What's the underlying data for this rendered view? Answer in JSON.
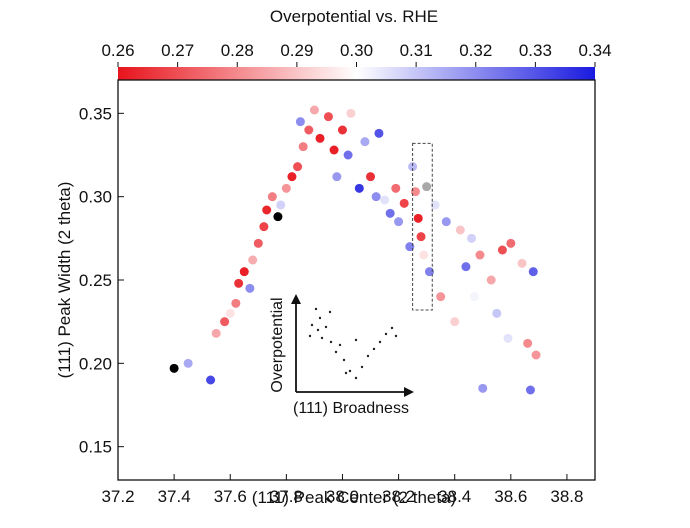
{
  "chart_data": {
    "type": "scatter",
    "colorbar": {
      "title": "Overpotential vs. RHE",
      "min": 0.26,
      "max": 0.34,
      "ticks": [
        "0.26",
        "0.27",
        "0.28",
        "0.29",
        "0.30",
        "0.31",
        "0.32",
        "0.33",
        "0.34"
      ],
      "low_color": "#e8141c",
      "mid_color": "#ffffff",
      "high_color": "#1a1ae0"
    },
    "xlabel": "(111) Peak Center (2 theta)",
    "ylabel": "(111) Peak Width (2 theta)",
    "xlim": [
      37.2,
      38.9
    ],
    "ylim": [
      0.13,
      0.37
    ],
    "xticks": [
      "37.2",
      "37.4",
      "37.6",
      "37.8",
      "38.0",
      "38.2",
      "38.4",
      "38.6",
      "38.8"
    ],
    "yticks": [
      "0.15",
      "0.20",
      "0.25",
      "0.30",
      "0.35"
    ],
    "grid": false,
    "points": [
      {
        "x": 37.4,
        "y": 0.197,
        "c": "black"
      },
      {
        "x": 37.45,
        "y": 0.2,
        "c": 0.315
      },
      {
        "x": 37.5,
        "y": 0.205,
        "c": 0.3
      },
      {
        "x": 37.53,
        "y": 0.19,
        "c": 0.332
      },
      {
        "x": 37.52,
        "y": 0.212,
        "c": 0.3
      },
      {
        "x": 37.55,
        "y": 0.218,
        "c": 0.285
      },
      {
        "x": 37.58,
        "y": 0.225,
        "c": 0.272
      },
      {
        "x": 37.6,
        "y": 0.23,
        "c": 0.295
      },
      {
        "x": 37.62,
        "y": 0.236,
        "c": 0.278
      },
      {
        "x": 37.63,
        "y": 0.248,
        "c": 0.265
      },
      {
        "x": 37.65,
        "y": 0.255,
        "c": 0.262
      },
      {
        "x": 37.67,
        "y": 0.245,
        "c": 0.32
      },
      {
        "x": 37.68,
        "y": 0.262,
        "c": 0.286
      },
      {
        "x": 37.7,
        "y": 0.272,
        "c": 0.272
      },
      {
        "x": 37.72,
        "y": 0.282,
        "c": 0.268
      },
      {
        "x": 37.73,
        "y": 0.292,
        "c": 0.263
      },
      {
        "x": 37.75,
        "y": 0.3,
        "c": 0.278
      },
      {
        "x": 37.77,
        "y": 0.288,
        "c": "black"
      },
      {
        "x": 37.78,
        "y": 0.295,
        "c": 0.308
      },
      {
        "x": 37.8,
        "y": 0.305,
        "c": 0.282
      },
      {
        "x": 37.82,
        "y": 0.312,
        "c": 0.262
      },
      {
        "x": 37.84,
        "y": 0.318,
        "c": 0.27
      },
      {
        "x": 37.85,
        "y": 0.345,
        "c": 0.32
      },
      {
        "x": 37.86,
        "y": 0.33,
        "c": 0.278
      },
      {
        "x": 37.88,
        "y": 0.34,
        "c": 0.272
      },
      {
        "x": 37.9,
        "y": 0.352,
        "c": 0.285
      },
      {
        "x": 37.92,
        "y": 0.335,
        "c": 0.262
      },
      {
        "x": 37.93,
        "y": 0.32,
        "c": 0.3
      },
      {
        "x": 37.95,
        "y": 0.348,
        "c": 0.27
      },
      {
        "x": 37.97,
        "y": 0.328,
        "c": 0.262
      },
      {
        "x": 37.98,
        "y": 0.312,
        "c": 0.318
      },
      {
        "x": 38.0,
        "y": 0.34,
        "c": 0.265
      },
      {
        "x": 38.02,
        "y": 0.325,
        "c": 0.325
      },
      {
        "x": 38.03,
        "y": 0.35,
        "c": 0.292
      },
      {
        "x": 38.05,
        "y": 0.318,
        "c": 0.3
      },
      {
        "x": 38.06,
        "y": 0.305,
        "c": 0.335
      },
      {
        "x": 38.08,
        "y": 0.333,
        "c": 0.315
      },
      {
        "x": 38.1,
        "y": 0.312,
        "c": 0.265
      },
      {
        "x": 38.12,
        "y": 0.3,
        "c": 0.32
      },
      {
        "x": 38.13,
        "y": 0.338,
        "c": 0.33
      },
      {
        "x": 38.15,
        "y": 0.298,
        "c": 0.305
      },
      {
        "x": 38.17,
        "y": 0.29,
        "c": 0.325
      },
      {
        "x": 38.19,
        "y": 0.305,
        "c": 0.275
      },
      {
        "x": 38.2,
        "y": 0.285,
        "c": 0.318
      },
      {
        "x": 38.22,
        "y": 0.296,
        "c": 0.268
      },
      {
        "x": 38.24,
        "y": 0.27,
        "c": 0.322
      },
      {
        "x": 38.25,
        "y": 0.318,
        "c": 0.312
      },
      {
        "x": 38.26,
        "y": 0.303,
        "c": 0.28
      },
      {
        "x": 38.27,
        "y": 0.287,
        "c": 0.262
      },
      {
        "x": 38.28,
        "y": 0.276,
        "c": 0.268
      },
      {
        "x": 38.29,
        "y": 0.265,
        "c": 0.295
      },
      {
        "x": 38.3,
        "y": 0.306,
        "c": "gray"
      },
      {
        "x": 38.31,
        "y": 0.255,
        "c": 0.322
      },
      {
        "x": 38.33,
        "y": 0.295,
        "c": 0.305
      },
      {
        "x": 38.35,
        "y": 0.24,
        "c": 0.282
      },
      {
        "x": 38.37,
        "y": 0.285,
        "c": 0.318
      },
      {
        "x": 38.39,
        "y": 0.262,
        "c": 0.3
      },
      {
        "x": 38.4,
        "y": 0.225,
        "c": 0.292
      },
      {
        "x": 38.42,
        "y": 0.28,
        "c": 0.29
      },
      {
        "x": 38.44,
        "y": 0.258,
        "c": 0.325
      },
      {
        "x": 38.46,
        "y": 0.275,
        "c": 0.308
      },
      {
        "x": 38.47,
        "y": 0.24,
        "c": 0.302
      },
      {
        "x": 38.49,
        "y": 0.265,
        "c": 0.28
      },
      {
        "x": 38.5,
        "y": 0.185,
        "c": 0.318
      },
      {
        "x": 38.52,
        "y": 0.272,
        "c": 0.3
      },
      {
        "x": 38.53,
        "y": 0.25,
        "c": 0.285
      },
      {
        "x": 38.55,
        "y": 0.23,
        "c": 0.31
      },
      {
        "x": 38.57,
        "y": 0.268,
        "c": 0.27
      },
      {
        "x": 38.59,
        "y": 0.215,
        "c": 0.305
      },
      {
        "x": 38.6,
        "y": 0.272,
        "c": 0.275
      },
      {
        "x": 38.62,
        "y": 0.245,
        "c": 0.3
      },
      {
        "x": 38.64,
        "y": 0.26,
        "c": 0.29
      },
      {
        "x": 38.66,
        "y": 0.212,
        "c": 0.28
      },
      {
        "x": 38.67,
        "y": 0.184,
        "c": 0.325
      },
      {
        "x": 38.68,
        "y": 0.255,
        "c": 0.328
      },
      {
        "x": 38.69,
        "y": 0.205,
        "c": 0.282
      }
    ],
    "highlight_box": {
      "x0": 38.25,
      "x1": 38.32,
      "y0": 0.232,
      "y1": 0.332
    },
    "inset": {
      "ylabel": "Overpotential",
      "xlabel": "(111) Broadness"
    }
  }
}
